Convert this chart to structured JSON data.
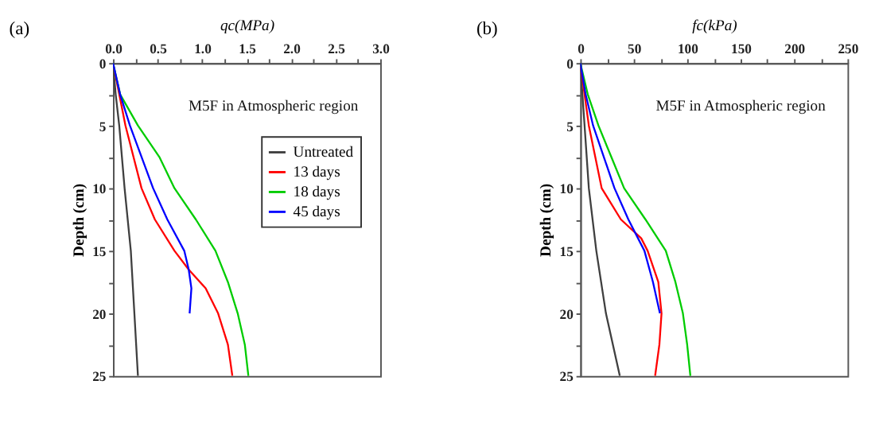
{
  "chart_data": [
    {
      "type": "line",
      "title": "(a)",
      "xlabel": "qc(MPa)",
      "ylabel": "Depth (cm)",
      "annotations": [
        "M5F in Atmospheric region"
      ],
      "legend": "top right",
      "grid": false,
      "marker": "none",
      "line_style": "solid",
      "xlim": [
        0,
        3
      ],
      "ylim": [
        25,
        0
      ],
      "xticks": [
        {
          "value": 0,
          "label": "0.0"
        },
        {
          "value": 0.25,
          "label": null
        },
        {
          "value": 0.5,
          "label": "0.5"
        },
        {
          "value": 0.75,
          "label": null
        },
        {
          "value": 1,
          "label": "1.0"
        },
        {
          "value": 1.25,
          "label": null
        },
        {
          "value": 1.5,
          "label": "1.5"
        },
        {
          "value": 1.75,
          "label": null
        },
        {
          "value": 2,
          "label": "2.0"
        },
        {
          "value": 2.25,
          "label": null
        },
        {
          "value": 2.5,
          "label": "2.5"
        },
        {
          "value": 2.75,
          "label": null
        },
        {
          "value": 3,
          "label": "3.0"
        }
      ],
      "yticks": [
        0,
        {
          "value": 2.5,
          "label": null
        },
        5,
        {
          "value": 7.5,
          "label": null
        },
        10,
        {
          "value": 12.5,
          "label": null
        },
        15,
        {
          "value": 17.5,
          "label": null
        },
        20,
        {
          "value": 22.5,
          "label": null
        },
        25
      ],
      "series": [
        {
          "name": "Untreated",
          "color": "#404040",
          "x": [
            0,
            0.03,
            0.07,
            0.13,
            0.2,
            0.24,
            0.28
          ],
          "values": [
            0,
            2.5,
            5,
            10,
            15,
            20,
            25
          ]
        },
        {
          "name": "13 days",
          "color": "#ff0000",
          "x": [
            0,
            0.07,
            0.14,
            0.32,
            0.47,
            0.69,
            0.85,
            1.04,
            1.18,
            1.29,
            1.34
          ],
          "values": [
            0,
            2.5,
            5,
            10,
            12.5,
            15,
            16.5,
            18,
            20,
            22.5,
            25
          ]
        },
        {
          "name": "18 days",
          "color": "#00cc00",
          "x": [
            0,
            0.08,
            0.28,
            0.52,
            0.69,
            0.93,
            1.15,
            1.29,
            1.4,
            1.48,
            1.52
          ],
          "values": [
            0,
            2.5,
            5,
            7.5,
            10,
            12.5,
            15,
            17.5,
            20,
            22.5,
            25
          ]
        },
        {
          "name": "45 days",
          "color": "#0000ff",
          "x": [
            0,
            0.08,
            0.19,
            0.45,
            0.61,
            0.8,
            0.85,
            0.88,
            0.86
          ],
          "values": [
            0,
            2.5,
            5,
            10,
            12.5,
            15,
            16.5,
            18,
            20
          ]
        }
      ]
    },
    {
      "type": "line",
      "title": "(b)",
      "xlabel": "fc(kPa)",
      "ylabel": "Depth (cm)",
      "annotations": [
        "M5F in Atmospheric region"
      ],
      "legend": "top right",
      "grid": false,
      "marker": "none",
      "line_style": "solid",
      "xlim": [
        0,
        250
      ],
      "ylim": [
        25,
        0
      ],
      "xticks": [
        0,
        {
          "value": 25,
          "label": null
        },
        50,
        {
          "value": 75,
          "label": null
        },
        100,
        {
          "value": 125,
          "label": null
        },
        150,
        {
          "value": 175,
          "label": null
        },
        200,
        {
          "value": 225,
          "label": null
        },
        250
      ],
      "yticks": [
        0,
        {
          "value": 2.5,
          "label": null
        },
        5,
        {
          "value": 7.5,
          "label": null
        },
        10,
        {
          "value": 12.5,
          "label": null
        },
        15,
        {
          "value": 17.5,
          "label": null
        },
        20,
        {
          "value": 22.5,
          "label": null
        },
        25
      ],
      "series": [
        {
          "name": "Untreated",
          "color": "#404040",
          "x": [
            0,
            2,
            4,
            8,
            15,
            24,
            37
          ],
          "values": [
            0,
            2.5,
            5,
            10,
            15,
            20,
            25
          ]
        },
        {
          "name": "13 days",
          "color": "#ff0000",
          "x": [
            0,
            4,
            8,
            14,
            20,
            38,
            57,
            63,
            73,
            76,
            74,
            70
          ],
          "values": [
            0,
            2.5,
            5,
            7.5,
            10,
            12.5,
            14,
            15,
            17.5,
            20,
            22.5,
            25
          ]
        },
        {
          "name": "18 days",
          "color": "#00cc00",
          "x": [
            0,
            7,
            17,
            29,
            41,
            61,
            80,
            89,
            96,
            100,
            103
          ],
          "values": [
            0,
            2.5,
            5,
            7.5,
            10,
            12.5,
            15,
            17.5,
            20,
            22.5,
            25
          ]
        },
        {
          "name": "45 days",
          "color": "#0000ff",
          "x": [
            0,
            5,
            12,
            22,
            32,
            45,
            60,
            68,
            74.5
          ],
          "values": [
            0,
            2.5,
            5,
            7.5,
            10,
            12.5,
            15,
            17.5,
            20
          ]
        }
      ]
    }
  ]
}
